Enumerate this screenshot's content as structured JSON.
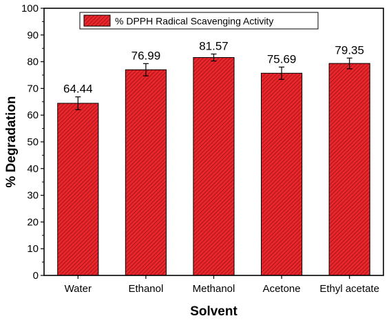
{
  "chart_data": {
    "type": "bar",
    "categories": [
      "Water",
      "Ethanol",
      "Methanol",
      "Acetone",
      "Ethyl acetate"
    ],
    "series": [
      {
        "name": "% DPPH Radical Scavenging Activity",
        "values": [
          64.44,
          76.99,
          81.57,
          75.69,
          79.35
        ],
        "errors": [
          2.4,
          2.3,
          1.3,
          2.3,
          2.0
        ],
        "data_labels": [
          "64.44",
          "76.99",
          "81.57",
          "75.69",
          "79.35"
        ]
      }
    ],
    "xlabel": "Solvent",
    "ylabel": "% Degradation",
    "ylim": [
      0,
      100
    ],
    "yticks": [
      0,
      10,
      20,
      30,
      40,
      50,
      60,
      70,
      80,
      90,
      100
    ],
    "ytick_labels": [
      "0",
      "10",
      "20",
      "30",
      "40",
      "50",
      "60",
      "70",
      "80",
      "90",
      "100"
    ],
    "legend_position": "top-center",
    "grid": false,
    "colors": {
      "bar_fill": "#e8262b",
      "hatch": "#8e0f12",
      "outline": "#000000"
    }
  }
}
